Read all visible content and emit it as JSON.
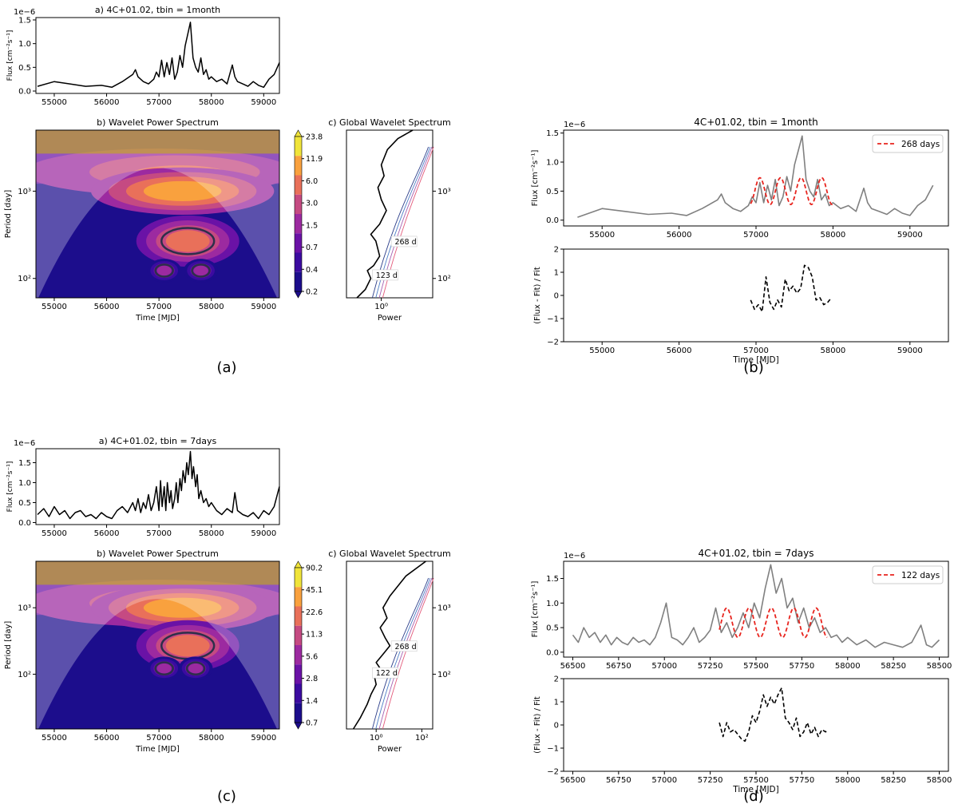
{
  "panel_labels": {
    "a": "(a)",
    "b": "(b)",
    "c": "(c)",
    "d": "(d)"
  },
  "common": {
    "flux_ylabel": "Flux [cm⁻²s⁻¹]",
    "period_ylabel": "Period [day]",
    "time_xlabel": "Time [MJD]",
    "power_xlabel": "Power",
    "resid_ylabel": "(Flux - Fit) / Fit",
    "flux_multiplier": "1e−6"
  },
  "chart_data": [
    {
      "id": "a_lightcurve",
      "type": "line",
      "title": "a) 4C+01.02, tbin = 1month",
      "xlim": [
        54650,
        59300
      ],
      "ylim": [
        -0.05,
        1.55
      ],
      "xticks": [
        55000,
        56000,
        57000,
        58000,
        59000
      ],
      "yticks": [
        0.0,
        0.5,
        1.0,
        1.5
      ],
      "series": [
        {
          "color": "#000000",
          "x": [
            54680,
            55000,
            55300,
            55600,
            55900,
            56100,
            56300,
            56500,
            56550,
            56600,
            56700,
            56800,
            56900,
            56950,
            57000,
            57050,
            57100,
            57150,
            57200,
            57250,
            57300,
            57350,
            57400,
            57450,
            57500,
            57550,
            57600,
            57650,
            57700,
            57750,
            57800,
            57850,
            57900,
            57950,
            58000,
            58100,
            58200,
            58300,
            58400,
            58450,
            58500,
            58600,
            58700,
            58800,
            58900,
            59000,
            59100,
            59200,
            59300
          ],
          "y": [
            0.1,
            0.2,
            0.15,
            0.1,
            0.12,
            0.08,
            0.2,
            0.35,
            0.45,
            0.3,
            0.2,
            0.15,
            0.25,
            0.4,
            0.3,
            0.65,
            0.3,
            0.6,
            0.35,
            0.7,
            0.25,
            0.4,
            0.75,
            0.5,
            0.95,
            1.2,
            1.45,
            0.7,
            0.5,
            0.4,
            0.7,
            0.35,
            0.45,
            0.25,
            0.3,
            0.2,
            0.25,
            0.15,
            0.55,
            0.3,
            0.2,
            0.15,
            0.1,
            0.2,
            0.12,
            0.08,
            0.25,
            0.35,
            0.6
          ]
        }
      ]
    },
    {
      "id": "a_wavelet",
      "type": "heatmap",
      "title": "b) Wavelet Power Spectrum",
      "xlim": [
        54650,
        59300
      ],
      "ylim_log": [
        60,
        5000
      ],
      "yscale": "log",
      "xticks": [
        55000,
        56000,
        57000,
        58000,
        59000
      ],
      "colorbar_ticks": [
        "23.8",
        "11.9",
        "6.0",
        "3.0",
        "1.5",
        "0.7",
        "0.4",
        "0.2"
      ],
      "colorbar_colors": [
        "#f0e43a",
        "#f9a13e",
        "#e9705a",
        "#c54a82",
        "#9c2aa0",
        "#6a12a6",
        "#3b0ba0",
        "#1c0d8c"
      ],
      "blobs": [
        {
          "x": 57450,
          "y": 1000,
          "level": 1
        },
        {
          "x": 57550,
          "y": 268,
          "level": 2
        },
        {
          "x": 57100,
          "y": 123,
          "level": 4
        },
        {
          "x": 57800,
          "y": 123,
          "level": 4
        }
      ]
    },
    {
      "id": "a_global",
      "type": "line",
      "title": "c) Global Wavelet Spectrum",
      "xscale": "log",
      "yscale": "log",
      "xlim": [
        0.1,
        30
      ],
      "ylim": [
        60,
        5000
      ],
      "xticks": [
        {
          "v": 1,
          "label": "10⁰"
        }
      ],
      "yticks": [
        {
          "v": 100,
          "label": "10²"
        },
        {
          "v": 1000,
          "label": "10³"
        }
      ],
      "annotations": [
        "268 d",
        "123 d"
      ],
      "series": [
        {
          "color": "#000000",
          "x": [
            0.2,
            0.35,
            0.5,
            0.4,
            0.6,
            0.9,
            0.7,
            0.5,
            0.9,
            1.4,
            1.0,
            0.8,
            1.2,
            1.0,
            1.5,
            3,
            8
          ],
          "y": [
            60,
            75,
            100,
            123,
            140,
            180,
            268,
            320,
            420,
            600,
            800,
            1100,
            1500,
            2000,
            3000,
            4000,
            5000
          ]
        }
      ]
    },
    {
      "id": "b_fit",
      "type": "line",
      "title": "4C+01.02, tbin = 1month",
      "xlim": [
        54500,
        59500
      ],
      "ylim": [
        -0.1,
        1.55
      ],
      "xticks": [
        55000,
        56000,
        57000,
        58000,
        59000
      ],
      "yticks": [
        0.0,
        0.5,
        1.0,
        1.5
      ],
      "legend": {
        "label": "268 days",
        "position": "top-right"
      },
      "series": [
        {
          "name": "data",
          "color": "#808080",
          "x": [
            54680,
            55000,
            55300,
            55600,
            55900,
            56100,
            56300,
            56500,
            56550,
            56600,
            56700,
            56800,
            56900,
            56950,
            57000,
            57050,
            57100,
            57150,
            57200,
            57250,
            57300,
            57350,
            57400,
            57450,
            57500,
            57550,
            57600,
            57650,
            57700,
            57750,
            57800,
            57850,
            57900,
            57950,
            58000,
            58100,
            58200,
            58300,
            58400,
            58450,
            58500,
            58600,
            58700,
            58800,
            58900,
            59000,
            59100,
            59200,
            59300
          ],
          "y": [
            0.05,
            0.2,
            0.15,
            0.1,
            0.12,
            0.08,
            0.2,
            0.35,
            0.45,
            0.3,
            0.2,
            0.15,
            0.25,
            0.4,
            0.3,
            0.65,
            0.3,
            0.6,
            0.35,
            0.7,
            0.25,
            0.4,
            0.75,
            0.5,
            0.95,
            1.2,
            1.45,
            0.7,
            0.5,
            0.4,
            0.7,
            0.35,
            0.45,
            0.25,
            0.3,
            0.2,
            0.25,
            0.15,
            0.55,
            0.3,
            0.2,
            0.15,
            0.1,
            0.2,
            0.12,
            0.08,
            0.25,
            0.35,
            0.6
          ]
        },
        {
          "name": "268 days",
          "color": "#e8241e",
          "dash": true,
          "period": 268,
          "amplitude": 0.23,
          "offset": 0.5,
          "phase_x": 57050,
          "xrange": [
            56930,
            58000
          ]
        }
      ]
    },
    {
      "id": "b_resid",
      "type": "line",
      "xlim": [
        54500,
        59500
      ],
      "ylim": [
        -2,
        2
      ],
      "xticks": [
        55000,
        56000,
        57000,
        58000,
        59000
      ],
      "yticks": [
        -2,
        -1,
        0,
        1,
        2
      ],
      "series": [
        {
          "color": "#000000",
          "dash": true,
          "x": [
            56930,
            56980,
            57030,
            57080,
            57130,
            57180,
            57230,
            57280,
            57330,
            57380,
            57430,
            57480,
            57530,
            57580,
            57630,
            57680,
            57730,
            57780,
            57830,
            57880,
            57930,
            57980
          ],
          "y": [
            -0.2,
            -0.6,
            -0.4,
            -0.7,
            0.8,
            -0.3,
            -0.6,
            -0.2,
            -0.5,
            0.7,
            0.2,
            0.4,
            0.1,
            0.3,
            1.3,
            1.2,
            0.8,
            -0.2,
            -0.1,
            -0.4,
            -0.3,
            -0.1
          ]
        }
      ]
    },
    {
      "id": "c_lightcurve",
      "type": "line",
      "title": "a) 4C+01.02, tbin = 7days",
      "xlim": [
        54650,
        59300
      ],
      "ylim": [
        -0.05,
        1.85
      ],
      "xticks": [
        55000,
        56000,
        57000,
        58000,
        59000
      ],
      "yticks": [
        0.0,
        0.5,
        1.0,
        1.5
      ],
      "series": [
        {
          "color": "#000000",
          "x": [
            54680,
            54800,
            54900,
            55000,
            55100,
            55200,
            55300,
            55400,
            55500,
            55600,
            55700,
            55800,
            55900,
            56000,
            56100,
            56200,
            56300,
            56400,
            56500,
            56550,
            56600,
            56650,
            56700,
            56750,
            56800,
            56850,
            56900,
            56950,
            57000,
            57030,
            57060,
            57100,
            57130,
            57160,
            57200,
            57230,
            57260,
            57300,
            57330,
            57360,
            57400,
            57430,
            57460,
            57500,
            57530,
            57560,
            57600,
            57630,
            57660,
            57700,
            57730,
            57760,
            57800,
            57850,
            57900,
            57950,
            58000,
            58100,
            58200,
            58300,
            58400,
            58450,
            58500,
            58600,
            58700,
            58800,
            58900,
            59000,
            59100,
            59200,
            59300
          ],
          "y": [
            0.2,
            0.35,
            0.15,
            0.4,
            0.2,
            0.3,
            0.1,
            0.25,
            0.3,
            0.15,
            0.2,
            0.1,
            0.25,
            0.15,
            0.1,
            0.3,
            0.4,
            0.25,
            0.5,
            0.3,
            0.6,
            0.25,
            0.5,
            0.35,
            0.7,
            0.3,
            0.5,
            0.9,
            0.3,
            1.05,
            0.4,
            0.9,
            0.3,
            1.0,
            0.5,
            0.8,
            0.35,
            0.6,
            1.0,
            0.5,
            1.1,
            0.8,
            1.3,
            1.0,
            1.5,
            1.2,
            1.78,
            1.1,
            1.4,
            0.9,
            1.2,
            0.6,
            0.8,
            0.5,
            0.6,
            0.4,
            0.5,
            0.3,
            0.2,
            0.35,
            0.25,
            0.75,
            0.3,
            0.2,
            0.15,
            0.25,
            0.1,
            0.3,
            0.2,
            0.4,
            0.9
          ]
        }
      ]
    },
    {
      "id": "c_wavelet",
      "type": "heatmap",
      "title": "b) Wavelet Power Spectrum",
      "xlim": [
        54650,
        59300
      ],
      "ylim_log": [
        15,
        5000
      ],
      "yscale": "log",
      "xticks": [
        55000,
        56000,
        57000,
        58000,
        59000
      ],
      "colorbar_ticks": [
        "90.2",
        "45.1",
        "22.6",
        "11.3",
        "5.6",
        "2.8",
        "1.4",
        "0.7"
      ],
      "colorbar_colors": [
        "#f0e43a",
        "#f9a13e",
        "#e9705a",
        "#c54a82",
        "#9c2aa0",
        "#6a12a6",
        "#3b0ba0",
        "#1c0d8c"
      ],
      "blobs": [
        {
          "x": 57450,
          "y": 1000,
          "level": 1
        },
        {
          "x": 57550,
          "y": 268,
          "level": 2
        },
        {
          "x": 57100,
          "y": 122,
          "level": 4
        },
        {
          "x": 57700,
          "y": 122,
          "level": 4
        }
      ]
    },
    {
      "id": "c_global",
      "type": "line",
      "title": "c) Global Wavelet Spectrum",
      "xscale": "log",
      "yscale": "log",
      "xlim": [
        0.05,
        300
      ],
      "ylim": [
        15,
        5000
      ],
      "xticks": [
        {
          "v": 1,
          "label": "10⁰"
        },
        {
          "v": 100,
          "label": "10²"
        }
      ],
      "yticks": [
        {
          "v": 100,
          "label": "10²"
        },
        {
          "v": 1000,
          "label": "10³"
        }
      ],
      "annotations": [
        "268 d",
        "122 d"
      ],
      "series": [
        {
          "color": "#000000",
          "x": [
            0.1,
            0.2,
            0.4,
            0.6,
            1.0,
            0.8,
            1.5,
            1.0,
            2.0,
            4.0,
            2.5,
            1.5,
            3.0,
            2.0,
            4.0,
            20,
            150
          ],
          "y": [
            15,
            22,
            35,
            50,
            70,
            100,
            122,
            150,
            200,
            268,
            350,
            500,
            700,
            1000,
            1500,
            3000,
            5000
          ]
        }
      ]
    },
    {
      "id": "d_fit",
      "type": "line",
      "title": "4C+01.02, tbin = 7days",
      "xlim": [
        56450,
        58550
      ],
      "ylim": [
        -0.1,
        1.85
      ],
      "xticks": [
        56500,
        56750,
        57000,
        57250,
        57500,
        57750,
        58000,
        58250,
        58500
      ],
      "yticks": [
        0.0,
        0.5,
        1.0,
        1.5
      ],
      "legend": {
        "label": "122 days",
        "position": "top-right"
      },
      "series": [
        {
          "name": "data",
          "color": "#808080",
          "x": [
            56500,
            56530,
            56560,
            56590,
            56620,
            56650,
            56680,
            56710,
            56740,
            56770,
            56800,
            56830,
            56860,
            56890,
            56920,
            56950,
            56980,
            57010,
            57040,
            57070,
            57100,
            57130,
            57160,
            57190,
            57220,
            57250,
            57280,
            57310,
            57340,
            57370,
            57400,
            57430,
            57460,
            57490,
            57520,
            57550,
            57580,
            57610,
            57640,
            57670,
            57700,
            57730,
            57760,
            57790,
            57820,
            57850,
            57880,
            57910,
            57940,
            57970,
            58000,
            58050,
            58100,
            58150,
            58200,
            58250,
            58300,
            58350,
            58400,
            58430,
            58460,
            58500
          ],
          "y": [
            0.35,
            0.2,
            0.5,
            0.3,
            0.4,
            0.2,
            0.35,
            0.15,
            0.3,
            0.2,
            0.15,
            0.3,
            0.2,
            0.25,
            0.15,
            0.3,
            0.6,
            1.0,
            0.3,
            0.25,
            0.15,
            0.3,
            0.5,
            0.2,
            0.3,
            0.45,
            0.9,
            0.4,
            0.6,
            0.3,
            0.5,
            0.8,
            0.5,
            1.0,
            0.7,
            1.3,
            1.78,
            1.2,
            1.5,
            0.9,
            1.1,
            0.6,
            0.9,
            0.5,
            0.7,
            0.4,
            0.5,
            0.3,
            0.35,
            0.2,
            0.3,
            0.15,
            0.25,
            0.1,
            0.2,
            0.15,
            0.1,
            0.2,
            0.55,
            0.15,
            0.1,
            0.25
          ]
        },
        {
          "name": "122 days",
          "color": "#e8241e",
          "dash": true,
          "period": 122,
          "amplitude": 0.3,
          "offset": 0.6,
          "phase_x": 57340,
          "xrange": [
            57300,
            57890
          ]
        }
      ]
    },
    {
      "id": "d_resid",
      "type": "line",
      "xlim": [
        56450,
        58550
      ],
      "ylim": [
        -2,
        2
      ],
      "xticks": [
        56500,
        56750,
        57000,
        57250,
        57500,
        57750,
        58000,
        58250,
        58500
      ],
      "yticks": [
        -2,
        -1,
        0,
        1,
        2
      ],
      "series": [
        {
          "color": "#000000",
          "dash": true,
          "x": [
            57300,
            57320,
            57340,
            57360,
            57380,
            57400,
            57420,
            57440,
            57460,
            57480,
            57500,
            57520,
            57540,
            57560,
            57580,
            57600,
            57620,
            57640,
            57660,
            57680,
            57700,
            57720,
            57740,
            57760,
            57780,
            57800,
            57820,
            57840,
            57860,
            57880,
            57890
          ],
          "y": [
            0.1,
            -0.5,
            0.1,
            -0.3,
            -0.2,
            -0.4,
            -0.6,
            -0.7,
            -0.3,
            0.4,
            0.1,
            0.6,
            1.3,
            0.8,
            1.2,
            0.9,
            1.3,
            1.6,
            0.3,
            0.1,
            -0.2,
            0.3,
            -0.5,
            -0.3,
            0.1,
            -0.4,
            -0.1,
            -0.5,
            -0.2,
            -0.3,
            -0.2
          ]
        }
      ]
    }
  ]
}
